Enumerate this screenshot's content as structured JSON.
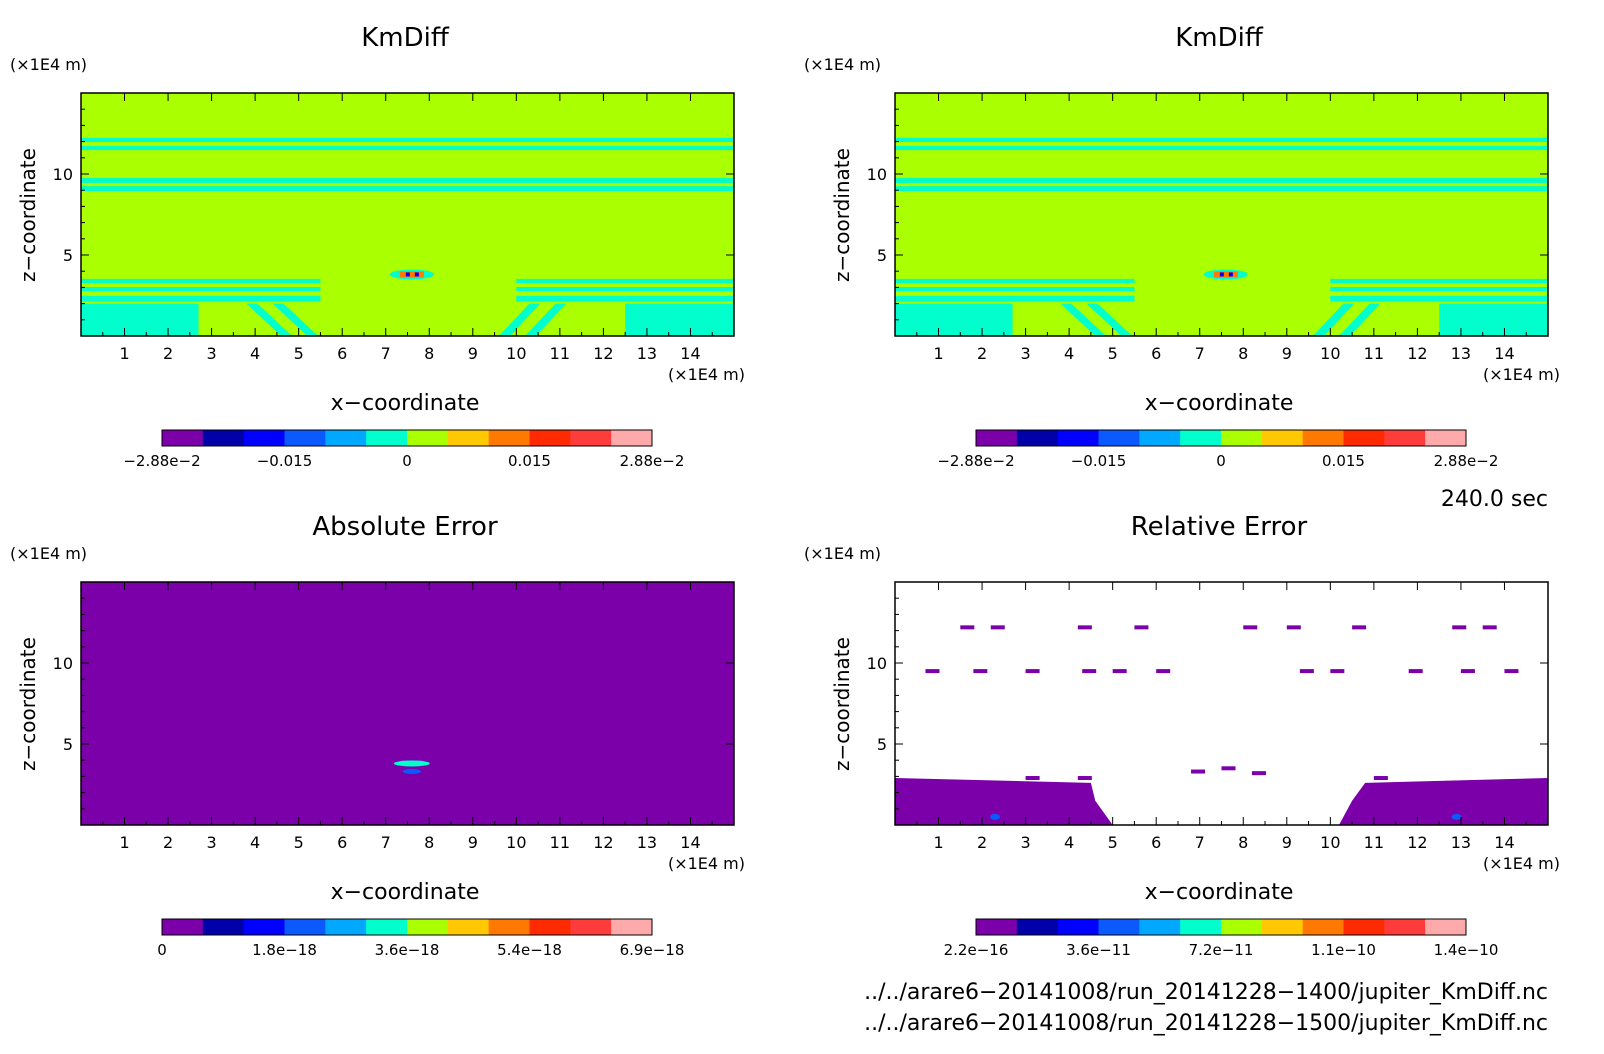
{
  "chart_data": [
    {
      "type": "heatmap",
      "title": "KmDiff",
      "xlabel": "x−coordinate",
      "ylabel": "z−coordinate",
      "x_unit": "(×1E4 m)",
      "y_unit": "(×1E4 m)",
      "xlim": [
        0,
        15
      ],
      "ylim": [
        0,
        15
      ],
      "x_ticks": [
        "1",
        "2",
        "3",
        "4",
        "5",
        "6",
        "7",
        "8",
        "9",
        "10",
        "11",
        "12",
        "13",
        "14"
      ],
      "y_ticks": [
        "5",
        "10"
      ],
      "colorbar": {
        "colors": [
          "#7b00aa",
          "#0000a8",
          "#0000ff",
          "#0a5aff",
          "#00a8ff",
          "#00ffcc",
          "#aaff00",
          "#ffc800",
          "#ff7800",
          "#ff2a00",
          "#ff3c3c",
          "#ffaaaa"
        ],
        "tick_labels": [
          "−2.88e−2",
          "−0.015",
          "0",
          "0.015",
          "2.88e−2"
        ]
      },
      "fill": "#aaff00",
      "features": "horizontal cyan bands near z=12, z=9.5, z=3; cyan region z<2 at edges; small red/blue anomaly near x=7.6, z=3.7"
    },
    {
      "type": "heatmap",
      "title": "KmDiff",
      "xlabel": "x−coordinate",
      "ylabel": "z−coordinate",
      "x_unit": "(×1E4 m)",
      "y_unit": "(×1E4 m)",
      "xlim": [
        0,
        15
      ],
      "ylim": [
        0,
        15
      ],
      "x_ticks": [
        "1",
        "2",
        "3",
        "4",
        "5",
        "6",
        "7",
        "8",
        "9",
        "10",
        "11",
        "12",
        "13",
        "14"
      ],
      "y_ticks": [
        "5",
        "10"
      ],
      "colorbar": {
        "colors": [
          "#7b00aa",
          "#0000a8",
          "#0000ff",
          "#0a5aff",
          "#00a8ff",
          "#00ffcc",
          "#aaff00",
          "#ffc800",
          "#ff7800",
          "#ff2a00",
          "#ff3c3c",
          "#ffaaaa"
        ],
        "tick_labels": [
          "−2.88e−2",
          "−0.015",
          "0",
          "0.015",
          "2.88e−2"
        ]
      },
      "fill": "#aaff00"
    },
    {
      "type": "heatmap",
      "title": "Absolute Error",
      "xlabel": "x−coordinate",
      "ylabel": "z−coordinate",
      "x_unit": "(×1E4 m)",
      "y_unit": "(×1E4 m)",
      "xlim": [
        0,
        15
      ],
      "ylim": [
        0,
        15
      ],
      "x_ticks": [
        "1",
        "2",
        "3",
        "4",
        "5",
        "6",
        "7",
        "8",
        "9",
        "10",
        "11",
        "12",
        "13",
        "14"
      ],
      "y_ticks": [
        "5",
        "10"
      ],
      "colorbar": {
        "colors": [
          "#7b00aa",
          "#0000a8",
          "#0000ff",
          "#0a5aff",
          "#00a8ff",
          "#00ffcc",
          "#aaff00",
          "#ffc800",
          "#ff7800",
          "#ff2a00",
          "#ff3c3c",
          "#ffaaaa"
        ],
        "tick_labels": [
          "0",
          "1.8e−18",
          "3.6e−18",
          "5.4e−18",
          "6.9e−18"
        ]
      },
      "fill": "#7b00aa"
    },
    {
      "type": "heatmap",
      "title": "Relative Error",
      "xlabel": "x−coordinate",
      "ylabel": "z−coordinate",
      "x_unit": "(×1E4 m)",
      "y_unit": "(×1E4 m)",
      "xlim": [
        0,
        15
      ],
      "ylim": [
        0,
        15
      ],
      "x_ticks": [
        "1",
        "2",
        "3",
        "4",
        "5",
        "6",
        "7",
        "8",
        "9",
        "10",
        "11",
        "12",
        "13",
        "14"
      ],
      "y_ticks": [
        "5",
        "10"
      ],
      "colorbar": {
        "colors": [
          "#7b00aa",
          "#0000a8",
          "#0000ff",
          "#0a5aff",
          "#00a8ff",
          "#00ffcc",
          "#aaff00",
          "#ffc800",
          "#ff7800",
          "#ff2a00",
          "#ff3c3c",
          "#ffaaaa"
        ],
        "tick_labels": [
          "2.2e−16",
          "3.6e−11",
          "7.2e−11",
          "1.1e−10",
          "1.4e−10"
        ]
      },
      "fill": "#ffffff"
    }
  ],
  "time_label": "240.0 sec",
  "files": [
    "../../arare6−20141008/run_20141228−1400/jupiter_KmDiff.nc",
    "../../arare6−20141008/run_20141228−1500/jupiter_KmDiff.nc"
  ],
  "colors": {
    "green": "#aaff00",
    "cyan": "#00ffcc",
    "purple": "#7b00aa"
  }
}
